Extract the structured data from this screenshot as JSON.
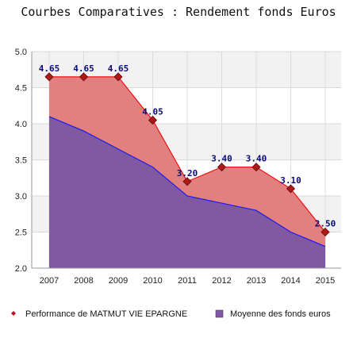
{
  "chart_data": {
    "type": "area",
    "title": "Courbes Comparatives : Rendement fonds Euros",
    "xlabel": "",
    "ylabel": "",
    "x": [
      "2007",
      "2008",
      "2009",
      "2010",
      "2011",
      "2012",
      "2013",
      "2014",
      "2015"
    ],
    "ylim": [
      2.0,
      5.0
    ],
    "yticks": [
      "2.0",
      "2.5",
      "3.0",
      "3.5",
      "4.0",
      "4.5",
      "5.0"
    ],
    "grid": true,
    "legend_position": "bottom",
    "series": [
      {
        "name": "Performance de MATMUT VIE EPARGNE",
        "values": [
          4.65,
          4.65,
          4.65,
          4.05,
          3.2,
          3.4,
          3.4,
          3.1,
          2.5
        ],
        "labels": [
          "4.65",
          "4.65",
          "4.65",
          "4.05",
          "3.20",
          "3.40",
          "3.40",
          "3.10",
          "2.50"
        ],
        "line_color": "#ee1111",
        "fill_color": "#e28080",
        "marker_color": "#b01818"
      },
      {
        "name": "Moyenne des fonds euros",
        "values": [
          4.1,
          3.9,
          3.65,
          3.4,
          3.0,
          2.9,
          2.8,
          2.5,
          2.3
        ],
        "line_color": "#1a1aee",
        "fill_color": "#8159a2"
      }
    ]
  }
}
